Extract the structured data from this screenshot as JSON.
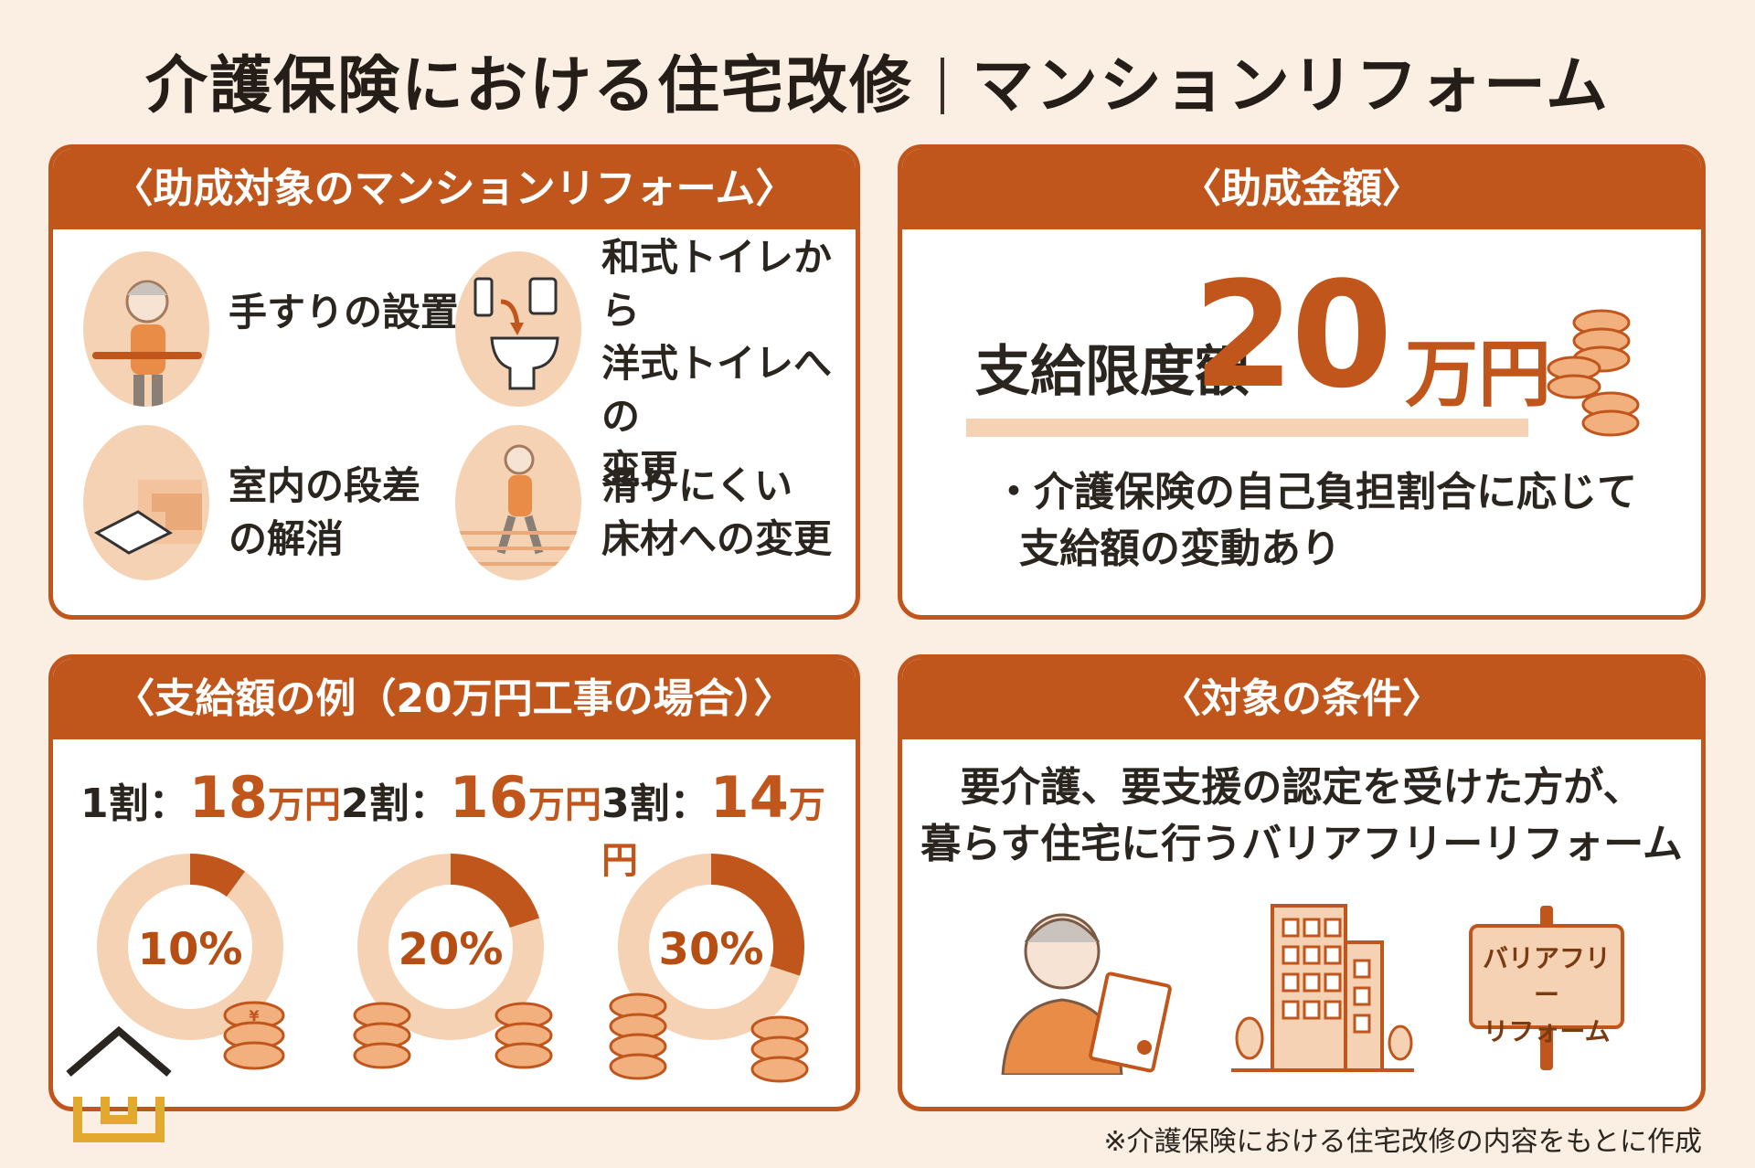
{
  "title": {
    "left": "介護保険における住宅改修",
    "right": "マンションリフォーム"
  },
  "target_panel": {
    "heading": "〈助成対象のマンションリフォーム〉",
    "items": [
      {
        "label_lines": [
          "手すりの設置"
        ],
        "icon": "elderly-handrail-icon"
      },
      {
        "label_lines": [
          "和式トイレから",
          "洋式トイレへの",
          "変更"
        ],
        "icon": "toilet-icon"
      },
      {
        "label_lines": [
          "室内の段差",
          "の解消"
        ],
        "icon": "step-ramp-icon"
      },
      {
        "label_lines": [
          "滑りにくい",
          "床材への変更"
        ],
        "icon": "walking-elderly-icon"
      }
    ]
  },
  "amount_panel": {
    "heading": "〈助成金額〉",
    "limit_label": "支給限度額",
    "limit_value": "20",
    "limit_unit": "万円",
    "note_line1": "・介護保険の自己負担割合に応じて",
    "note_line2": "支給額の変動あり"
  },
  "example_panel": {
    "heading": "〈支給額の例（20万円工事の場合）〉",
    "examples": [
      {
        "ratio": "1割：",
        "amount": "18",
        "unit": "万円",
        "percent_label": "10%",
        "percent": 10
      },
      {
        "ratio": "2割：",
        "amount": "16",
        "unit": "万円",
        "percent_label": "20%",
        "percent": 20
      },
      {
        "ratio": "3割：",
        "amount": "14",
        "unit": "万円",
        "percent_label": "30%",
        "percent": 30
      }
    ]
  },
  "condition_panel": {
    "heading": "〈対象の条件〉",
    "line1": "要介護、要支援の認定を受けた方が、",
    "line2": "暮らす住宅に行うバリアフリーリフォーム",
    "sign_line1": "バリアフリー",
    "sign_line2": "リフォーム"
  },
  "footnote": "※介護保険における住宅改修の内容をもとに作成",
  "colors": {
    "accent": "#c0561c",
    "light": "#f6d2b4",
    "background": "#fbeee2"
  }
}
